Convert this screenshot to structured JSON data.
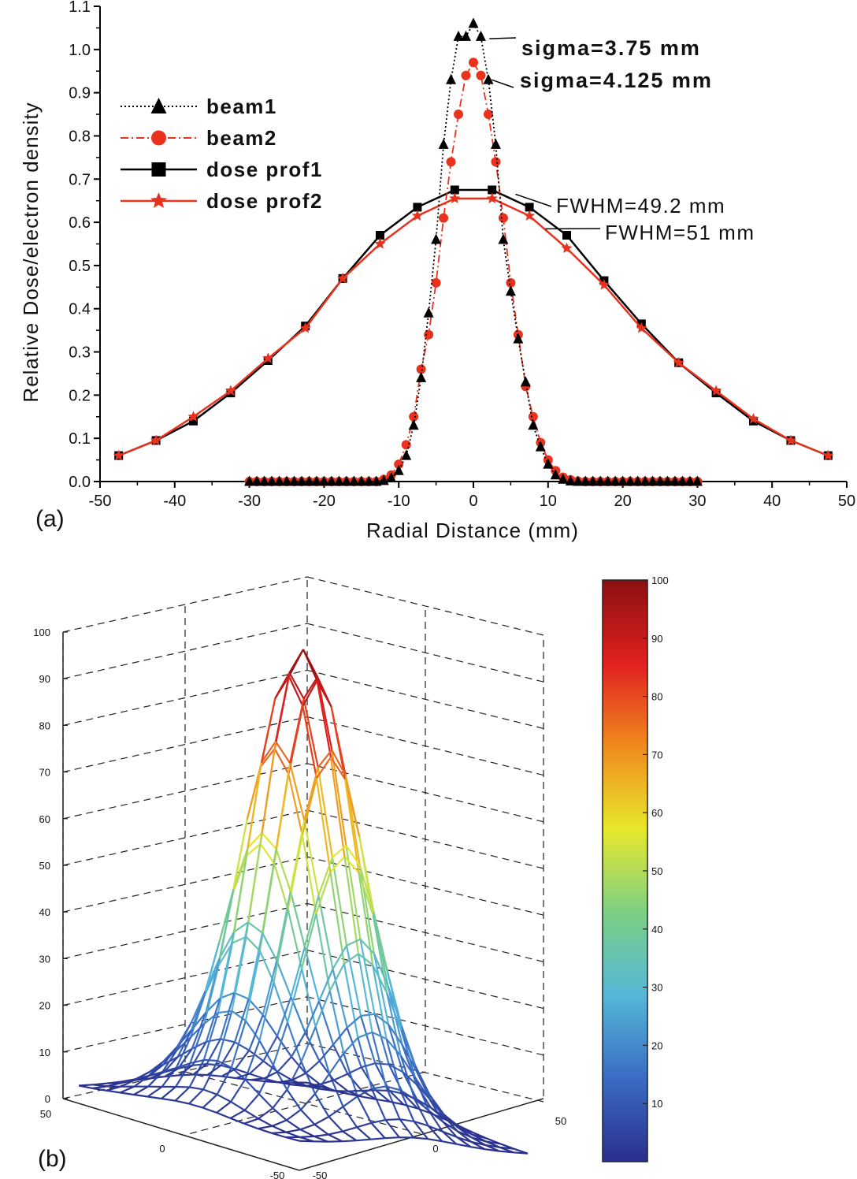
{
  "colors": {
    "beam1": "#000000",
    "beam2": "#e8321e",
    "dose_prof1": "#000000",
    "dose_prof2": "#e8321e",
    "colorbar_stops": [
      "#2a2f8c",
      "#3a6bc4",
      "#55b7d8",
      "#7ccf84",
      "#e8e82c",
      "#f08a1e",
      "#e02020",
      "#8c1010"
    ]
  },
  "chart_data": [
    {
      "type": "line",
      "panel_label": "(a)",
      "xlabel": "Radial Distance (mm)",
      "ylabel": "Relative Dose/electron density",
      "xlim": [
        -50,
        50
      ],
      "ylim": [
        0.0,
        1.1
      ],
      "x_ticks": [
        -50,
        -40,
        -30,
        -20,
        -10,
        0,
        10,
        20,
        30,
        40,
        50
      ],
      "x_tick_labels": [
        "-50",
        "-40",
        "-30",
        "-20",
        "-10",
        "0",
        "10",
        "20",
        "30",
        "40",
        "50"
      ],
      "y_ticks": [
        0.0,
        0.1,
        0.2,
        0.3,
        0.4,
        0.5,
        0.6,
        0.7,
        0.8,
        0.9,
        1.0,
        1.1
      ],
      "y_tick_labels": [
        "0.0",
        "0.1",
        "0.2",
        "0.3",
        "0.4",
        "0.5",
        "0.6",
        "0.7",
        "0.8",
        "0.9",
        "1.0",
        "1.1"
      ],
      "legend_position": "upper-left",
      "series": [
        {
          "name": "beam1",
          "marker": "triangle",
          "line_style": "dotted",
          "x": [
            -30,
            -29,
            -28,
            -27,
            -26,
            -25,
            -24,
            -23,
            -22,
            -21,
            -20,
            -19,
            -18,
            -17,
            -16,
            -15,
            -14,
            -13,
            -12,
            -11,
            -10,
            -9,
            -8,
            -7,
            -6,
            -5,
            -4,
            -3,
            -2,
            -1,
            0,
            1,
            2,
            3,
            4,
            5,
            6,
            7,
            8,
            9,
            10,
            11,
            12,
            13,
            14,
            15,
            16,
            17,
            18,
            19,
            20,
            21,
            22,
            23,
            24,
            25,
            26,
            27,
            28,
            29,
            30
          ],
          "values": [
            0,
            0,
            0,
            0,
            0,
            0,
            0,
            0,
            0,
            0,
            0,
            0,
            0,
            0,
            0,
            0,
            0,
            0,
            0.002,
            0.008,
            0.025,
            0.06,
            0.13,
            0.24,
            0.39,
            0.56,
            0.78,
            0.93,
            1.03,
            1.03,
            1.06,
            1.03,
            0.93,
            0.78,
            0.56,
            0.44,
            0.33,
            0.23,
            0.13,
            0.08,
            0.04,
            0.015,
            0.005,
            0.001,
            0,
            0,
            0,
            0,
            0,
            0,
            0,
            0,
            0,
            0,
            0,
            0,
            0,
            0,
            0,
            0,
            0
          ]
        },
        {
          "name": "beam2",
          "marker": "circle",
          "line_style": "dashdot",
          "x": [
            -30,
            -29,
            -28,
            -27,
            -26,
            -25,
            -24,
            -23,
            -22,
            -21,
            -20,
            -19,
            -18,
            -17,
            -16,
            -15,
            -14,
            -13,
            -12,
            -11,
            -10,
            -9,
            -8,
            -7,
            -6,
            -5,
            -4,
            -3,
            -2,
            -1,
            0,
            1,
            2,
            3,
            4,
            5,
            6,
            7,
            8,
            9,
            10,
            11,
            12,
            13,
            14,
            15,
            16,
            17,
            18,
            19,
            20,
            21,
            22,
            23,
            24,
            25,
            26,
            27,
            28,
            29,
            30
          ],
          "values": [
            0,
            0,
            0,
            0,
            0,
            0,
            0,
            0,
            0,
            0,
            0,
            0,
            0,
            0,
            0,
            0,
            0,
            0,
            0.005,
            0.015,
            0.04,
            0.085,
            0.15,
            0.26,
            0.34,
            0.46,
            0.61,
            0.74,
            0.85,
            0.94,
            0.97,
            0.94,
            0.85,
            0.74,
            0.61,
            0.46,
            0.34,
            0.22,
            0.15,
            0.09,
            0.05,
            0.025,
            0.01,
            0.004,
            0.001,
            0,
            0,
            0,
            0,
            0,
            0,
            0,
            0,
            0,
            0,
            0,
            0,
            0,
            0,
            0,
            0
          ]
        },
        {
          "name": "dose prof1",
          "marker": "square",
          "line_style": "solid",
          "x": [
            -47.5,
            -42.5,
            -37.5,
            -32.5,
            -27.5,
            -22.5,
            -17.5,
            -12.5,
            -7.5,
            -2.5,
            2.5,
            7.5,
            12.5,
            17.5,
            22.5,
            27.5,
            32.5,
            37.5,
            42.5,
            47.5
          ],
          "values": [
            0.06,
            0.095,
            0.14,
            0.205,
            0.28,
            0.36,
            0.47,
            0.57,
            0.635,
            0.675,
            0.675,
            0.635,
            0.57,
            0.465,
            0.365,
            0.275,
            0.205,
            0.14,
            0.095,
            0.06
          ]
        },
        {
          "name": "dose prof2",
          "marker": "star",
          "line_style": "solid",
          "x": [
            -47.5,
            -42.5,
            -37.5,
            -32.5,
            -27.5,
            -22.5,
            -17.5,
            -12.5,
            -7.5,
            -2.5,
            2.5,
            7.5,
            12.5,
            17.5,
            22.5,
            27.5,
            32.5,
            37.5,
            42.5,
            47.5
          ],
          "values": [
            0.06,
            0.095,
            0.15,
            0.21,
            0.285,
            0.355,
            0.47,
            0.55,
            0.615,
            0.655,
            0.655,
            0.615,
            0.54,
            0.455,
            0.355,
            0.275,
            0.21,
            0.145,
            0.095,
            0.06
          ]
        }
      ],
      "annotations": [
        {
          "text": "sigma=3.75 mm",
          "style": "bold",
          "x": 1.5,
          "y": 1.025
        },
        {
          "text": "sigma=4.125 mm",
          "style": "bold",
          "x": 1.5,
          "y": 0.935
        },
        {
          "text": "FWHM=49.2 mm",
          "style": "plain",
          "x": 5,
          "y": 0.66
        },
        {
          "text": "FWHM=51 mm",
          "style": "plain",
          "x": 8.5,
          "y": 0.58
        }
      ]
    },
    {
      "type": "surface",
      "panel_label": "(b)",
      "z_ticks": [
        0,
        10,
        20,
        30,
        40,
        50,
        60,
        70,
        80,
        90,
        100
      ],
      "z_tick_labels": [
        "0",
        "10",
        "20",
        "30",
        "40",
        "50",
        "60",
        "70",
        "80",
        "90",
        "100"
      ],
      "left_axis_tick_labels": [
        "50",
        "0",
        "-50"
      ],
      "right_axis_tick_labels": [
        "-50",
        "0",
        "50"
      ],
      "grid": true,
      "colormap": "jet",
      "colorbar": {
        "range": [
          0,
          100
        ],
        "tick_values": [
          10,
          20,
          30,
          40,
          50,
          60,
          70,
          80,
          90,
          100
        ],
        "tick_labels": [
          "10",
          "20",
          "30",
          "40",
          "50",
          "60",
          "70",
          "80",
          "90",
          "100"
        ]
      }
    }
  ]
}
